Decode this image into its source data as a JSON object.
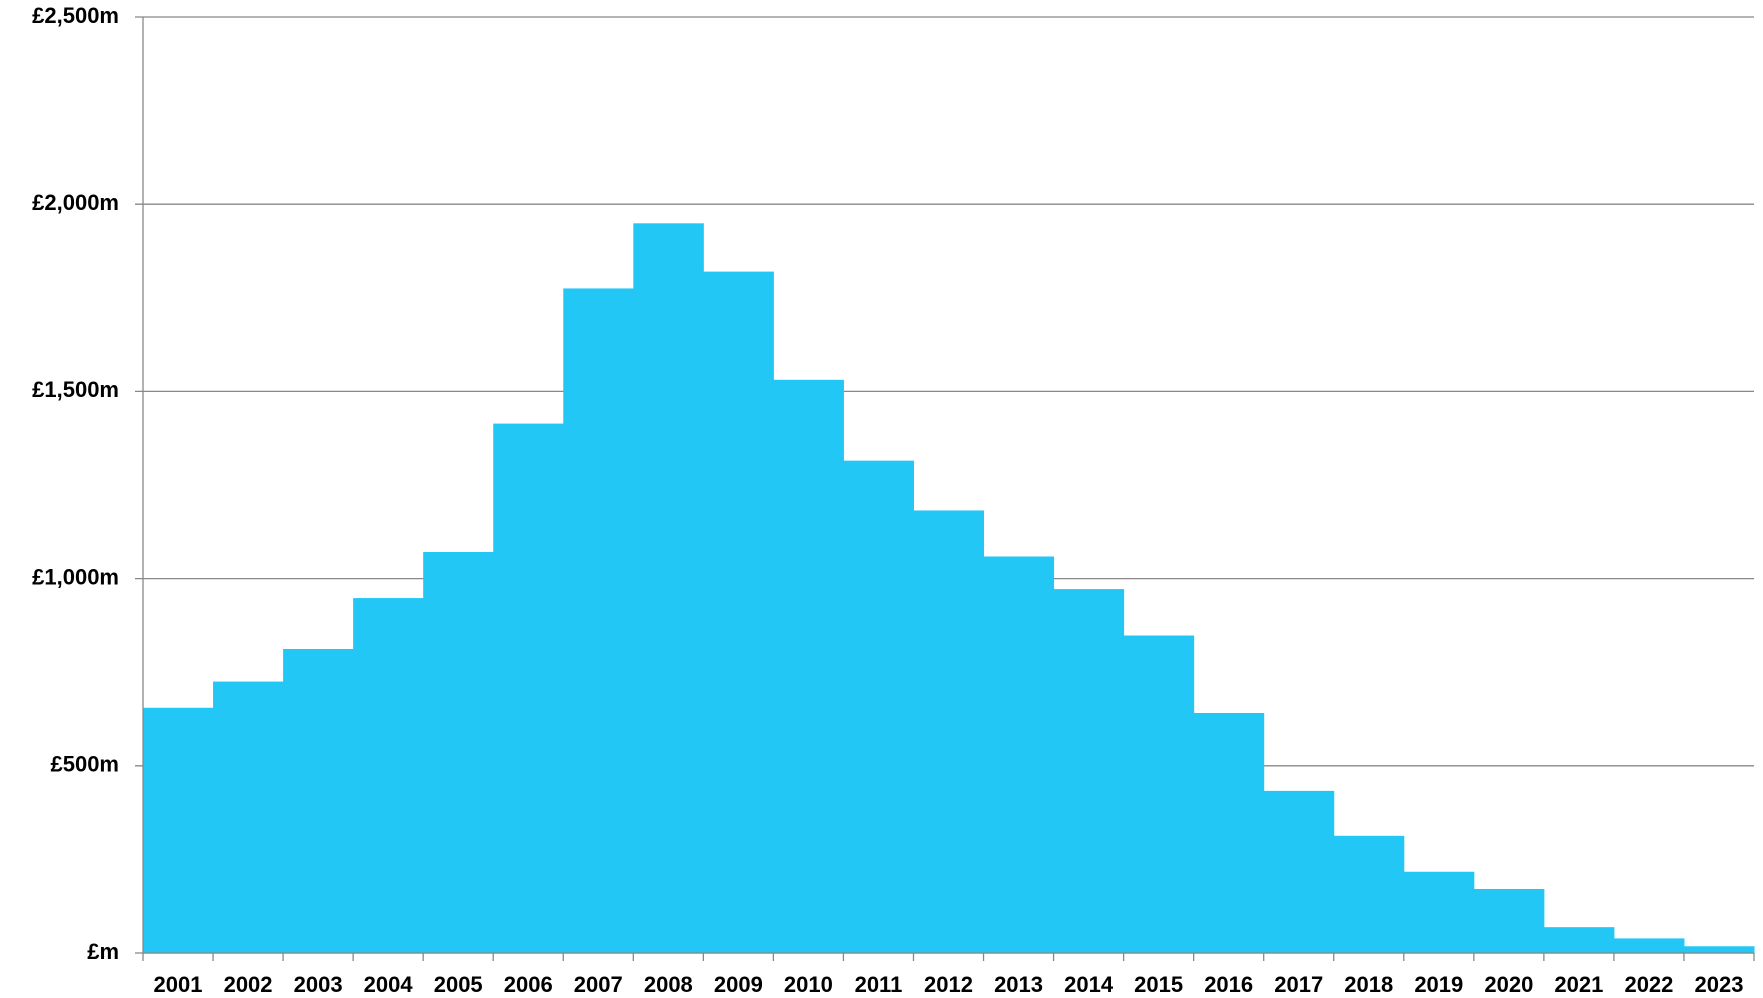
{
  "chart_data": {
    "type": "bar",
    "categories": [
      "2001",
      "2002",
      "2003",
      "2004",
      "2005",
      "2006",
      "2007",
      "2008",
      "2009",
      "2010",
      "2011",
      "2012",
      "2013",
      "2014",
      "2015",
      "2016",
      "2017",
      "2018",
      "2019",
      "2020",
      "2021",
      "2022",
      "2023"
    ],
    "values": [
      655,
      725,
      812,
      948,
      1071,
      1414,
      1775,
      1949,
      1820,
      1531,
      1315,
      1182,
      1059,
      972,
      848,
      641,
      433,
      313,
      217,
      171,
      69,
      39,
      18
    ],
    "color": "#22c7f5",
    "ylim": [
      0,
      2500
    ],
    "yticks": [
      {
        "value": 0,
        "label": "£m"
      },
      {
        "value": 500,
        "label": "£500m"
      },
      {
        "value": 1000,
        "label": "£1,000m"
      },
      {
        "value": 1500,
        "label": "£1,500m"
      },
      {
        "value": 2000,
        "label": "£2,000m"
      },
      {
        "value": 2500,
        "label": "£2,500m"
      }
    ],
    "grid": true
  }
}
